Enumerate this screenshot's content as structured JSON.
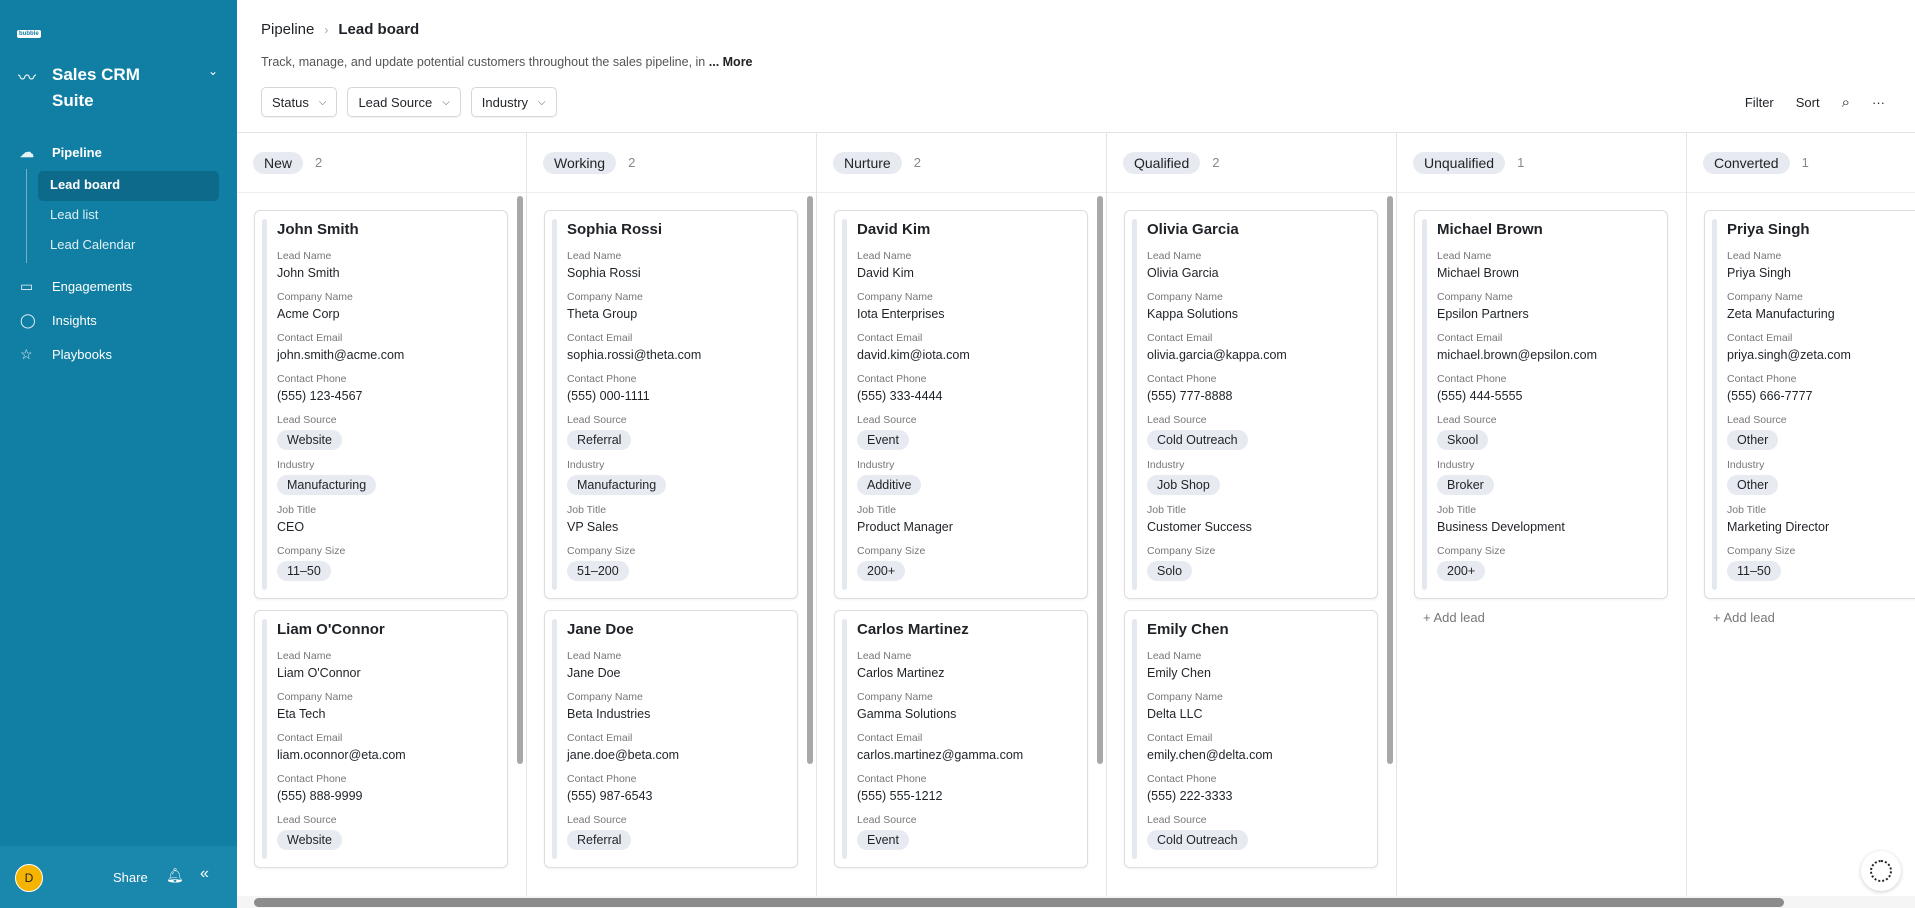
{
  "sidebar": {
    "logo": "Bubble",
    "app_name": "Sales CRM Suite",
    "nav": [
      {
        "label": "Pipeline",
        "icon": "cloud-icon",
        "children": [
          "Lead board",
          "Lead list",
          "Lead Calendar"
        ],
        "active_child": 0
      },
      {
        "label": "Engagements",
        "icon": "monitor-icon"
      },
      {
        "label": "Insights",
        "icon": "chat-bubble-icon"
      },
      {
        "label": "Playbooks",
        "icon": "star-icon"
      }
    ],
    "footer": {
      "avatar": "D",
      "share": "Share"
    },
    "accent": "#117fa3"
  },
  "header": {
    "breadcrumb": [
      "Pipeline",
      "Lead board"
    ],
    "description": "Track, manage, and update potential customers throughout the sales pipeline, in",
    "more": "... More",
    "filters": [
      "Status",
      "Lead Source",
      "Industry"
    ],
    "tools": [
      "Filter",
      "Sort"
    ]
  },
  "fields": [
    "Lead Name",
    "Company Name",
    "Contact Email",
    "Contact Phone",
    "Lead Source",
    "Industry",
    "Job Title",
    "Company Size"
  ],
  "add_lead": "+ Add lead",
  "columns": [
    {
      "name": "New",
      "count": "2",
      "cards": [
        [
          "John Smith",
          "Acme Corp",
          "john.smith@acme.com",
          "(555) 123-4567",
          "Website",
          "Manufacturing",
          "CEO",
          "11–50"
        ],
        [
          "Liam O'Connor",
          "Eta Tech",
          "liam.oconnor@eta.com",
          "(555) 888-9999",
          "Website"
        ]
      ]
    },
    {
      "name": "Working",
      "count": "2",
      "cards": [
        [
          "Sophia Rossi",
          "Theta Group",
          "sophia.rossi@theta.com",
          "(555) 000-1111",
          "Referral",
          "Manufacturing",
          "VP Sales",
          "51–200"
        ],
        [
          "Jane Doe",
          "Beta Industries",
          "jane.doe@beta.com",
          "(555) 987-6543",
          "Referral"
        ]
      ]
    },
    {
      "name": "Nurture",
      "count": "2",
      "cards": [
        [
          "David Kim",
          "Iota Enterprises",
          "david.kim@iota.com",
          "(555) 333-4444",
          "Event",
          "Additive",
          "Product Manager",
          "200+"
        ],
        [
          "Carlos Martinez",
          "Gamma Solutions",
          "carlos.martinez@gamma.com",
          "(555) 555-1212",
          "Event"
        ]
      ]
    },
    {
      "name": "Qualified",
      "count": "2",
      "cards": [
        [
          "Olivia Garcia",
          "Kappa Solutions",
          "olivia.garcia@kappa.com",
          "(555) 777-8888",
          "Cold Outreach",
          "Job Shop",
          "Customer Success",
          "Solo"
        ],
        [
          "Emily Chen",
          "Delta LLC",
          "emily.chen@delta.com",
          "(555) 222-3333",
          "Cold Outreach"
        ]
      ]
    },
    {
      "name": "Unqualified",
      "count": "1",
      "cards": [
        [
          "Michael Brown",
          "Epsilon Partners",
          "michael.brown@epsilon.com",
          "(555) 444-5555",
          "Skool",
          "Broker",
          "Business Development",
          "200+"
        ]
      ]
    },
    {
      "name": "Converted",
      "count": "1",
      "cards": [
        [
          "Priya Singh",
          "Zeta Manufacturing",
          "priya.singh@zeta.com",
          "(555) 666-7777",
          "Other",
          "Other",
          "Marketing Director",
          "11–50"
        ]
      ]
    }
  ]
}
